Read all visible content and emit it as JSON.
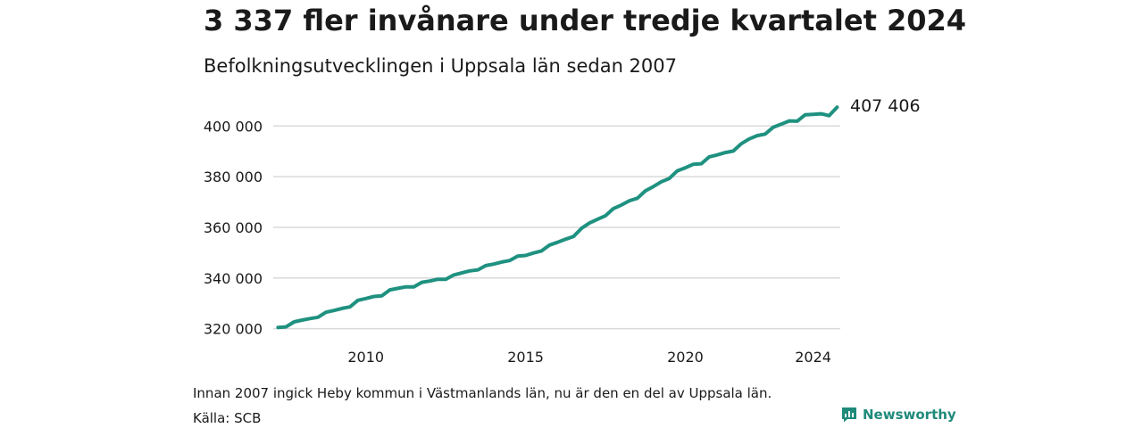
{
  "header": {
    "title": "3 337 fler invånare under tredje kvartalet 2024",
    "subtitle": "Befolkningsutvecklingen i Uppsala län sedan 2007"
  },
  "footer": {
    "note": "Innan 2007 ingick Heby kommun i Västmanlands län, nu är den en del av Uppsala län.",
    "source": "Källa: SCB",
    "brand": "Newsworthy"
  },
  "colors": {
    "line": "#1f9180",
    "grid": "#d9d9d9",
    "brand": "#1f8a7a"
  },
  "chart_data": {
    "type": "line",
    "x_start": 2007.25,
    "x_step": 0.25,
    "xlim": [
      2007.1,
      2024.85
    ],
    "ylim": [
      316000,
      411000
    ],
    "x_ticks": [
      {
        "value": 2010,
        "label": "2010"
      },
      {
        "value": 2015,
        "label": "2015"
      },
      {
        "value": 2020,
        "label": "2020"
      },
      {
        "value": 2024,
        "label": "2024"
      }
    ],
    "y_ticks": [
      {
        "value": 320000,
        "label": "320 000"
      },
      {
        "value": 340000,
        "label": "340 000"
      },
      {
        "value": 360000,
        "label": "360 000"
      },
      {
        "value": 380000,
        "label": "380 000"
      },
      {
        "value": 400000,
        "label": "400 000"
      }
    ],
    "end_label": "407 406",
    "grid": true,
    "series": [
      {
        "values": [
          320500,
          320700,
          322700,
          323400,
          324000,
          324500,
          326500,
          327200,
          328000,
          328600,
          331200,
          331900,
          332700,
          333000,
          335300,
          335900,
          336500,
          336500,
          338300,
          338800,
          339500,
          339500,
          341200,
          342000,
          342800,
          343200,
          344900,
          345500,
          346300,
          346900,
          348600,
          348900,
          349900,
          350700,
          353000,
          354100,
          355300,
          356400,
          359600,
          361700,
          363200,
          364600,
          367400,
          368800,
          370500,
          371500,
          374400,
          376100,
          378000,
          379300,
          382300,
          383500,
          384900,
          385100,
          387800,
          388600,
          389500,
          390100,
          393000,
          394900,
          396200,
          396800,
          399500,
          400700,
          402000,
          401900,
          404400,
          404600,
          404800,
          404069,
          407406
        ]
      }
    ]
  }
}
